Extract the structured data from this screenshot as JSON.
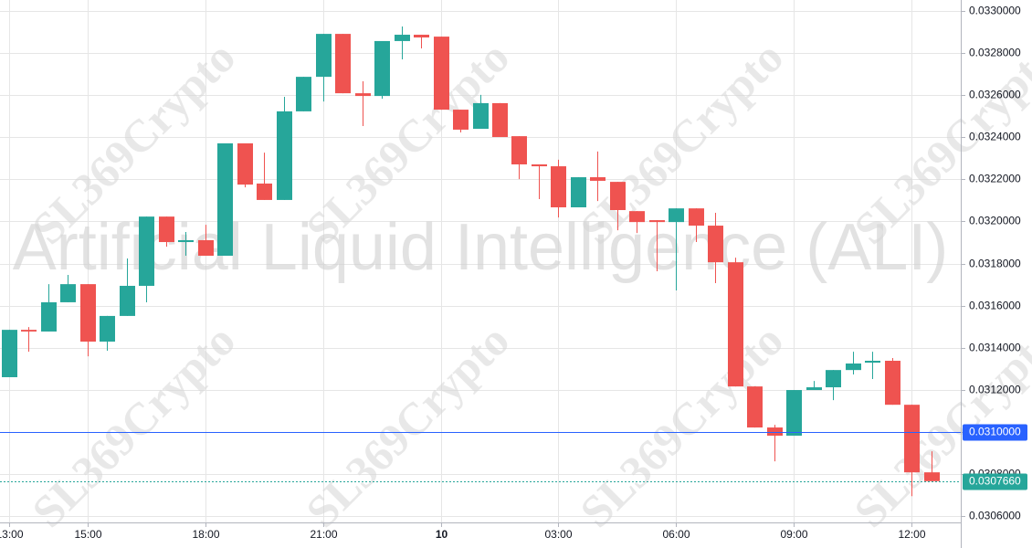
{
  "chart_data": {
    "type": "candlestick",
    "symbol_watermark": "Artificial Liquid Intelligence (ALI)",
    "watermark": "SL369Crypto",
    "up_color": "#26a69a",
    "down_color": "#ef5350",
    "grid": true,
    "x": [
      "13:00",
      "13:30",
      "14:00",
      "14:30",
      "15:00",
      "15:30",
      "16:00",
      "16:30",
      "17:00",
      "17:30",
      "18:00",
      "18:30",
      "19:00",
      "19:30",
      "20:00",
      "20:30",
      "21:00",
      "21:30",
      "22:00",
      "22:30",
      "23:00",
      "23:30",
      "00:00",
      "00:30",
      "01:00",
      "01:30",
      "02:00",
      "02:30",
      "03:00",
      "03:30",
      "04:00",
      "04:30",
      "05:00",
      "05:30",
      "06:00",
      "06:30",
      "07:00",
      "07:30",
      "08:00",
      "08:30",
      "09:00",
      "09:30",
      "10:00",
      "10:30",
      "11:00",
      "11:30",
      "12:00",
      "12:30"
    ],
    "xticks": [
      "13:00",
      "15:00",
      "18:00",
      "21:00",
      {
        "value": "00:00",
        "label": "10"
      },
      "03:00",
      "06:00",
      "09:00",
      "12:00"
    ],
    "open": [
      0.03126,
      0.031485,
      0.031477,
      0.031616,
      0.031702,
      0.031429,
      0.031551,
      0.031694,
      0.032023,
      0.031902,
      0.031911,
      0.031837,
      0.032371,
      0.03218,
      0.032102,
      0.032523,
      0.032687,
      0.032891,
      0.032609,
      0.032596,
      0.032857,
      0.032887,
      0.032878,
      0.032531,
      0.03244,
      0.032562,
      0.032405,
      0.032271,
      0.032262,
      0.032067,
      0.03221,
      0.032188,
      0.032049,
      0.032006,
      0.031997,
      0.032062,
      0.03198,
      0.031806,
      0.031216,
      0.031021,
      0.030982,
      0.031199,
      0.031212,
      0.031294,
      0.031329,
      0.031338,
      0.031129,
      0.030808
    ],
    "high": [
      0.031485,
      0.031498,
      0.031702,
      0.031746,
      0.031702,
      0.031551,
      0.031824,
      0.032023,
      0.032023,
      0.03195,
      0.031984,
      0.032371,
      0.032371,
      0.032327,
      0.032592,
      0.032687,
      0.032891,
      0.032891,
      0.032666,
      0.032857,
      0.032926,
      0.032887,
      0.032878,
      0.032531,
      0.032601,
      0.032562,
      0.032405,
      0.032271,
      0.032293,
      0.03221,
      0.032332,
      0.032188,
      0.032049,
      0.032006,
      0.032062,
      0.032062,
      0.032041,
      0.031828,
      0.031216,
      0.031034,
      0.031199,
      0.031242,
      0.031294,
      0.031381,
      0.031381,
      0.031351,
      0.031129,
      0.030908
    ],
    "low": [
      0.03126,
      0.031381,
      0.031477,
      0.031616,
      0.031359,
      0.031386,
      0.031551,
      0.031616,
      0.03188,
      0.031837,
      0.031837,
      0.031837,
      0.032162,
      0.032102,
      0.032102,
      0.032523,
      0.03257,
      0.032609,
      0.032453,
      0.032583,
      0.03277,
      0.032822,
      0.032531,
      0.032423,
      0.03244,
      0.032401,
      0.032201,
      0.032106,
      0.032019,
      0.032067,
      0.032097,
      0.031958,
      0.031945,
      0.031763,
      0.031672,
      0.031902,
      0.031707,
      0.031216,
      0.031021,
      0.03086,
      0.030982,
      0.031199,
      0.031151,
      0.031273,
      0.031251,
      0.031129,
      0.030695,
      0.030766
    ],
    "close": [
      0.031485,
      0.031477,
      0.031616,
      0.031702,
      0.031429,
      0.031551,
      0.031694,
      0.032023,
      0.031902,
      0.031911,
      0.031837,
      0.032371,
      0.032175,
      0.032102,
      0.032523,
      0.032687,
      0.032891,
      0.032609,
      0.032596,
      0.032857,
      0.032887,
      0.032874,
      0.032531,
      0.032436,
      0.032562,
      0.032401,
      0.032271,
      0.032262,
      0.032067,
      0.03221,
      0.032193,
      0.032054,
      0.031997,
      0.031997,
      0.032062,
      0.03198,
      0.031806,
      0.031216,
      0.031021,
      0.030982,
      0.031199,
      0.031212,
      0.031294,
      0.031325,
      0.031338,
      0.031129,
      0.030808,
      0.030766
    ],
    "ylim": [
      0.03057,
      0.033052
    ],
    "yticks": [
      {
        "value": 0.0306,
        "label": "0.0306000"
      },
      {
        "value": 0.0308,
        "label": "0.0308000"
      },
      {
        "value": 0.031,
        "label": "0.0310000"
      },
      {
        "value": 0.0312,
        "label": "0.0312000"
      },
      {
        "value": 0.0314,
        "label": "0.0314000"
      },
      {
        "value": 0.0316,
        "label": "0.0316000"
      },
      {
        "value": 0.0318,
        "label": "0.0318000"
      },
      {
        "value": 0.032,
        "label": "0.0320000"
      },
      {
        "value": 0.0322,
        "label": "0.0322000"
      },
      {
        "value": 0.0324,
        "label": "0.0324000"
      },
      {
        "value": 0.0326,
        "label": "0.0326000"
      },
      {
        "value": 0.0328,
        "label": "0.0328000"
      },
      {
        "value": 0.033,
        "label": "0.0330000"
      }
    ],
    "price_line": {
      "value": 0.031,
      "label": "0.0310000",
      "color": "#2962ff"
    },
    "last_price": {
      "value": 0.030766,
      "label": "0.0307660",
      "color": "#26a69a"
    }
  }
}
